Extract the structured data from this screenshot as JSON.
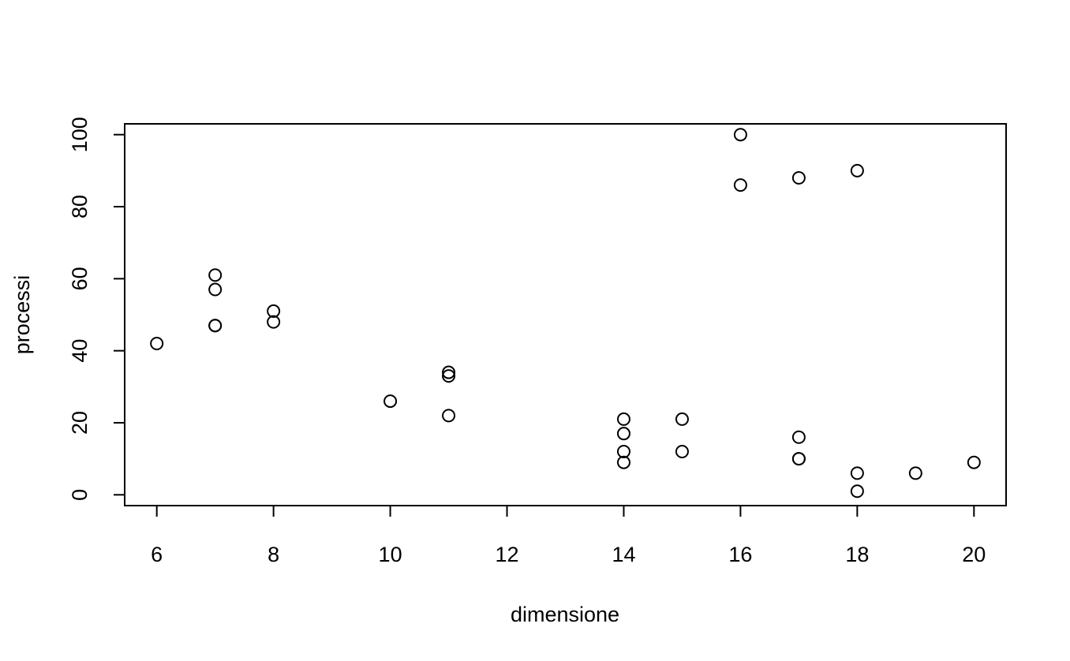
{
  "chart_data": {
    "type": "scatter",
    "title": "",
    "xlabel": "dimensione",
    "ylabel": "processi",
    "xlim": [
      5.45,
      20.55
    ],
    "ylim": [
      -3,
      103
    ],
    "x_ticks": [
      6,
      8,
      10,
      12,
      14,
      16,
      18,
      20
    ],
    "x_tick_labels": [
      "6",
      "8",
      "10",
      "12",
      "14",
      "16",
      "18",
      "20"
    ],
    "y_ticks": [
      0,
      20,
      40,
      60,
      80,
      100
    ],
    "y_tick_labels": [
      "0",
      "20",
      "40",
      "60",
      "80",
      "100"
    ],
    "grid": false,
    "marker": "open-circle",
    "marker_color": "#000000",
    "points": [
      {
        "x": 6,
        "y": 42
      },
      {
        "x": 7,
        "y": 61
      },
      {
        "x": 7,
        "y": 57
      },
      {
        "x": 7,
        "y": 47
      },
      {
        "x": 7,
        "y": 47
      },
      {
        "x": 8,
        "y": 51
      },
      {
        "x": 8,
        "y": 48
      },
      {
        "x": 10,
        "y": 26
      },
      {
        "x": 11,
        "y": 34
      },
      {
        "x": 11,
        "y": 33
      },
      {
        "x": 11,
        "y": 22
      },
      {
        "x": 14,
        "y": 21
      },
      {
        "x": 14,
        "y": 17
      },
      {
        "x": 14,
        "y": 12
      },
      {
        "x": 14,
        "y": 9
      },
      {
        "x": 15,
        "y": 21
      },
      {
        "x": 15,
        "y": 12
      },
      {
        "x": 16,
        "y": 100
      },
      {
        "x": 16,
        "y": 86
      },
      {
        "x": 17,
        "y": 88
      },
      {
        "x": 17,
        "y": 16
      },
      {
        "x": 17,
        "y": 10
      },
      {
        "x": 17,
        "y": 10
      },
      {
        "x": 18,
        "y": 90
      },
      {
        "x": 18,
        "y": 6
      },
      {
        "x": 18,
        "y": 1
      },
      {
        "x": 19,
        "y": 6
      },
      {
        "x": 20,
        "y": 9
      }
    ]
  }
}
